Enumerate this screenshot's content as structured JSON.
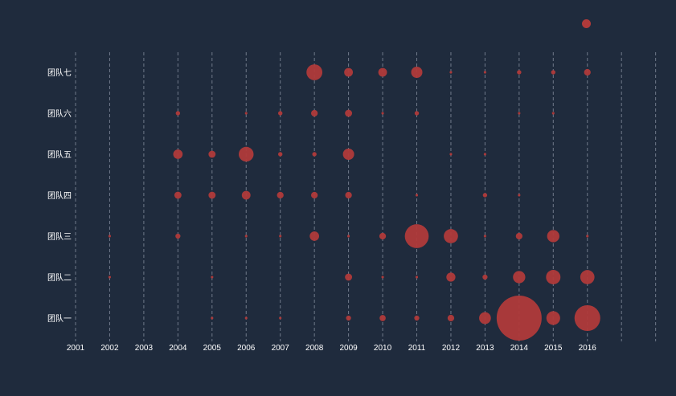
{
  "chart_data": {
    "type": "scatter",
    "title": "",
    "xlabel": "",
    "ylabel": "",
    "x_categories": [
      "2001",
      "2002",
      "2003",
      "2004",
      "2005",
      "2006",
      "2007",
      "2008",
      "2009",
      "2010",
      "2011",
      "2012",
      "2013",
      "2014",
      "2015",
      "2016"
    ],
    "y_categories": [
      "团队一",
      "团队二",
      "团队三",
      "团队四",
      "团队五",
      "团队六",
      "团队七"
    ],
    "grid": {
      "vertical_dashed": true
    },
    "legend": {
      "position": "top-right",
      "label": "",
      "visible": true
    },
    "colors": {
      "point": "#b03a3a",
      "background": "#1f2b3d",
      "text": "#ffffff",
      "grid": "#8a93a3",
      "legend_text": "#3f4c60"
    },
    "series": [
      {
        "name": "",
        "points": [
          {
            "x": "2005",
            "y": "团队一",
            "value": 1
          },
          {
            "x": "2006",
            "y": "团队一",
            "value": 1
          },
          {
            "x": "2007",
            "y": "团队一",
            "value": 1
          },
          {
            "x": "2009",
            "y": "团队一",
            "value": 4
          },
          {
            "x": "2010",
            "y": "团队一",
            "value": 6
          },
          {
            "x": "2011",
            "y": "团队一",
            "value": 4
          },
          {
            "x": "2012",
            "y": "团队一",
            "value": 7
          },
          {
            "x": "2013",
            "y": "团队一",
            "value": 22
          },
          {
            "x": "2014",
            "y": "团队一",
            "value": 320
          },
          {
            "x": "2015",
            "y": "团队一",
            "value": 30
          },
          {
            "x": "2016",
            "y": "团队一",
            "value": 105
          },
          {
            "x": "2002",
            "y": "团队二",
            "value": 1
          },
          {
            "x": "2005",
            "y": "团队二",
            "value": 1
          },
          {
            "x": "2009",
            "y": "团队二",
            "value": 8
          },
          {
            "x": "2010",
            "y": "团队二",
            "value": 1
          },
          {
            "x": "2011",
            "y": "团队二",
            "value": 1
          },
          {
            "x": "2012",
            "y": "团队二",
            "value": 13
          },
          {
            "x": "2013",
            "y": "团队二",
            "value": 4
          },
          {
            "x": "2014",
            "y": "团队二",
            "value": 24
          },
          {
            "x": "2015",
            "y": "团队二",
            "value": 33
          },
          {
            "x": "2016",
            "y": "团队二",
            "value": 32
          },
          {
            "x": "2002",
            "y": "团队三",
            "value": 1
          },
          {
            "x": "2004",
            "y": "团队三",
            "value": 4
          },
          {
            "x": "2006",
            "y": "团队三",
            "value": 1
          },
          {
            "x": "2007",
            "y": "团队三",
            "value": 1
          },
          {
            "x": "2008",
            "y": "团队三",
            "value": 14
          },
          {
            "x": "2009",
            "y": "团队三",
            "value": 1
          },
          {
            "x": "2010",
            "y": "团队三",
            "value": 7
          },
          {
            "x": "2011",
            "y": "团队三",
            "value": 90
          },
          {
            "x": "2012",
            "y": "团队三",
            "value": 32
          },
          {
            "x": "2013",
            "y": "团队三",
            "value": 1
          },
          {
            "x": "2014",
            "y": "团队三",
            "value": 7
          },
          {
            "x": "2015",
            "y": "团队三",
            "value": 24
          },
          {
            "x": "2016",
            "y": "团队三",
            "value": 1
          },
          {
            "x": "2004",
            "y": "团队四",
            "value": 8
          },
          {
            "x": "2005",
            "y": "团队四",
            "value": 8
          },
          {
            "x": "2006",
            "y": "团队四",
            "value": 12
          },
          {
            "x": "2007",
            "y": "团队四",
            "value": 7
          },
          {
            "x": "2008",
            "y": "团队四",
            "value": 7
          },
          {
            "x": "2009",
            "y": "团队四",
            "value": 7
          },
          {
            "x": "2011",
            "y": "团队四",
            "value": 1
          },
          {
            "x": "2013",
            "y": "团队四",
            "value": 3
          },
          {
            "x": "2014",
            "y": "团队四",
            "value": 1
          },
          {
            "x": "2004",
            "y": "团队五",
            "value": 14
          },
          {
            "x": "2005",
            "y": "团队五",
            "value": 8
          },
          {
            "x": "2006",
            "y": "团队五",
            "value": 35
          },
          {
            "x": "2007",
            "y": "团队五",
            "value": 3
          },
          {
            "x": "2008",
            "y": "团队五",
            "value": 3
          },
          {
            "x": "2009",
            "y": "团队五",
            "value": 20
          },
          {
            "x": "2012",
            "y": "团队五",
            "value": 1
          },
          {
            "x": "2013",
            "y": "团队五",
            "value": 1
          },
          {
            "x": "2004",
            "y": "团队六",
            "value": 3
          },
          {
            "x": "2006",
            "y": "团队六",
            "value": 1
          },
          {
            "x": "2007",
            "y": "团队六",
            "value": 3
          },
          {
            "x": "2008",
            "y": "团队六",
            "value": 7
          },
          {
            "x": "2009",
            "y": "团队六",
            "value": 8
          },
          {
            "x": "2010",
            "y": "团队六",
            "value": 1
          },
          {
            "x": "2011",
            "y": "团队六",
            "value": 3
          },
          {
            "x": "2014",
            "y": "团队六",
            "value": 1
          },
          {
            "x": "2015",
            "y": "团队六",
            "value": 1
          },
          {
            "x": "2008",
            "y": "团队七",
            "value": 40
          },
          {
            "x": "2009",
            "y": "团队七",
            "value": 12
          },
          {
            "x": "2010",
            "y": "团队七",
            "value": 12
          },
          {
            "x": "2011",
            "y": "团队七",
            "value": 20
          },
          {
            "x": "2012",
            "y": "团队七",
            "value": 1
          },
          {
            "x": "2013",
            "y": "团队七",
            "value": 1
          },
          {
            "x": "2014",
            "y": "团队七",
            "value": 3
          },
          {
            "x": "2015",
            "y": "团队七",
            "value": 3
          },
          {
            "x": "2016",
            "y": "团队七",
            "value": 7
          }
        ]
      }
    ]
  }
}
